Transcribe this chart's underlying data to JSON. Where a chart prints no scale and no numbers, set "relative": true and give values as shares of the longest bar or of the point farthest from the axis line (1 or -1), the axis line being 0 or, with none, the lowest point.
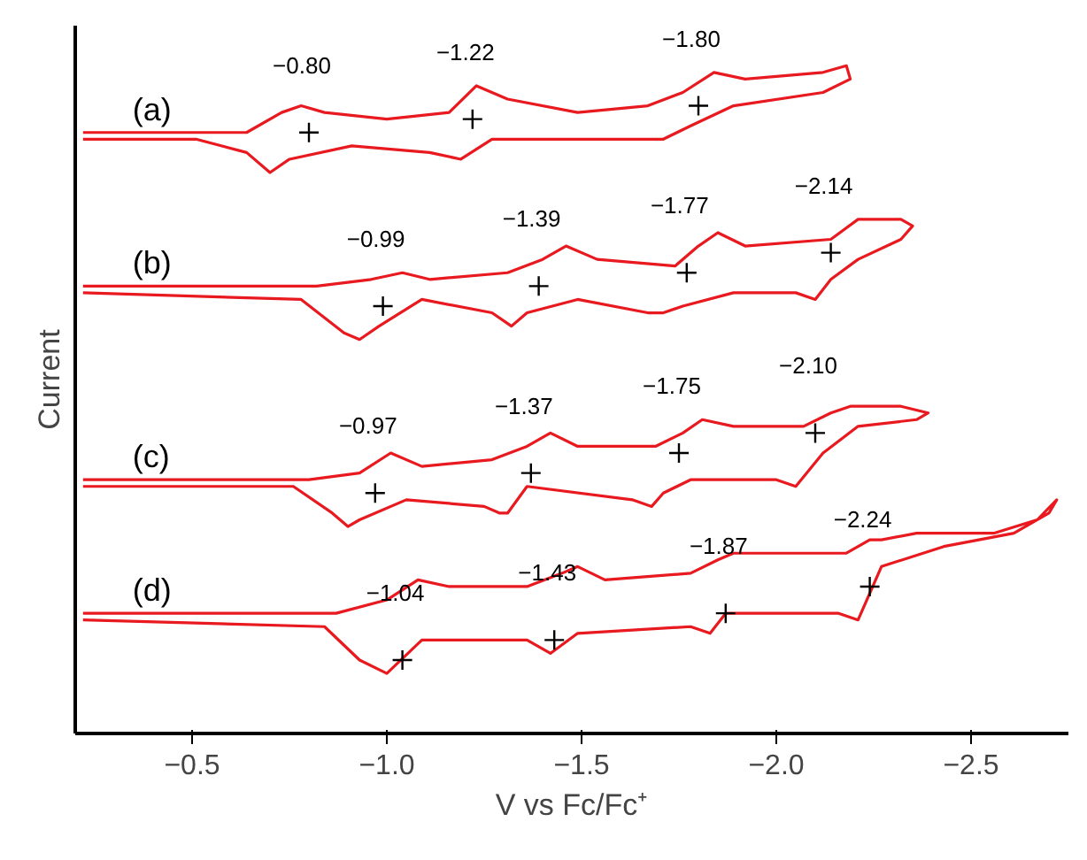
{
  "chart_data": {
    "type": "line",
    "relative": true,
    "xlabel": "V vs Fc/Fc⁺",
    "ylabel": "Current",
    "xlim": [
      -0.2,
      -2.75
    ],
    "xticks": [
      {
        "value": -0.5,
        "label": "−0.5"
      },
      {
        "value": -1.0,
        "label": "−1.0"
      },
      {
        "value": -1.5,
        "label": "−1.5"
      },
      {
        "value": -2.0,
        "label": "−2.0"
      },
      {
        "value": -2.5,
        "label": "−2.5"
      }
    ],
    "grid": false,
    "line_style": "solid",
    "series": [
      {
        "name": "(a)",
        "color": "#e8191f",
        "x": [
          -0.22,
          -0.64,
          -0.73,
          -0.78,
          -0.84,
          -1.0,
          -1.16,
          -1.23,
          -1.31,
          -1.49,
          -1.67,
          -1.76,
          -1.84,
          -1.92,
          -2.12,
          -2.18,
          -2.19,
          -2.12,
          -1.89,
          -1.78,
          -1.71,
          -1.6,
          -1.27,
          -1.19,
          -1.11,
          -0.91,
          -0.75,
          -0.7,
          -0.64,
          -0.51,
          -0.22
        ],
        "values": [
          0.9,
          0.9,
          0.93,
          0.94,
          0.93,
          0.92,
          0.93,
          0.97,
          0.95,
          0.93,
          0.94,
          0.96,
          0.99,
          0.98,
          0.99,
          1.0,
          0.98,
          0.96,
          0.94,
          0.91,
          0.89,
          0.89,
          0.89,
          0.86,
          0.87,
          0.88,
          0.86,
          0.84,
          0.87,
          0.89,
          0.89
        ]
      },
      {
        "name": "(b)",
        "color": "#e8191f",
        "x": [
          -0.22,
          -0.82,
          -0.96,
          -1.04,
          -1.11,
          -1.31,
          -1.4,
          -1.46,
          -1.54,
          -1.74,
          -1.8,
          -1.85,
          -1.92,
          -2.14,
          -2.21,
          -2.25,
          -2.32,
          -2.35,
          -2.32,
          -2.21,
          -2.14,
          -2.1,
          -2.05,
          -1.89,
          -1.76,
          -1.71,
          -1.67,
          -1.49,
          -1.36,
          -1.32,
          -1.27,
          -1.09,
          -0.98,
          -0.93,
          -0.89,
          -0.78,
          -0.22
        ],
        "values": [
          0.67,
          0.67,
          0.68,
          0.69,
          0.68,
          0.69,
          0.71,
          0.73,
          0.71,
          0.7,
          0.73,
          0.75,
          0.73,
          0.74,
          0.77,
          0.77,
          0.77,
          0.76,
          0.74,
          0.71,
          0.68,
          0.65,
          0.66,
          0.66,
          0.64,
          0.63,
          0.63,
          0.65,
          0.63,
          0.61,
          0.63,
          0.65,
          0.61,
          0.59,
          0.6,
          0.65,
          0.66
        ]
      },
      {
        "name": "(c)",
        "color": "#e8191f",
        "x": [
          -0.22,
          -0.8,
          -0.93,
          -1.01,
          -1.09,
          -1.27,
          -1.36,
          -1.42,
          -1.49,
          -1.69,
          -1.76,
          -1.81,
          -1.89,
          -2.07,
          -2.14,
          -2.19,
          -2.32,
          -2.39,
          -2.36,
          -2.21,
          -2.12,
          -2.05,
          -2.0,
          -1.78,
          -1.71,
          -1.68,
          -1.63,
          -1.36,
          -1.31,
          -1.29,
          -1.25,
          -1.05,
          -0.93,
          -0.9,
          -0.86,
          -0.76,
          -0.22
        ],
        "values": [
          0.38,
          0.38,
          0.39,
          0.42,
          0.4,
          0.41,
          0.43,
          0.45,
          0.43,
          0.43,
          0.45,
          0.47,
          0.46,
          0.46,
          0.48,
          0.49,
          0.49,
          0.48,
          0.47,
          0.46,
          0.42,
          0.37,
          0.38,
          0.38,
          0.36,
          0.34,
          0.35,
          0.37,
          0.33,
          0.33,
          0.34,
          0.35,
          0.32,
          0.31,
          0.33,
          0.37,
          0.37
        ]
      },
      {
        "name": "(d)",
        "color": "#e8191f",
        "x": [
          -0.22,
          -0.87,
          -1.0,
          -1.08,
          -1.16,
          -1.36,
          -1.45,
          -1.49,
          -1.56,
          -1.78,
          -1.85,
          -1.89,
          -1.98,
          -2.18,
          -2.24,
          -2.27,
          -2.36,
          -2.56,
          -2.67,
          -2.72,
          -2.7,
          -2.61,
          -2.43,
          -2.27,
          -2.21,
          -2.16,
          -1.87,
          -1.83,
          -1.78,
          -1.49,
          -1.42,
          -1.36,
          -1.09,
          -1.0,
          -0.93,
          -0.84,
          -0.22
        ],
        "values": [
          0.18,
          0.18,
          0.2,
          0.23,
          0.22,
          0.22,
          0.24,
          0.25,
          0.23,
          0.24,
          0.26,
          0.27,
          0.27,
          0.27,
          0.29,
          0.29,
          0.3,
          0.3,
          0.32,
          0.35,
          0.33,
          0.3,
          0.28,
          0.25,
          0.17,
          0.18,
          0.18,
          0.15,
          0.16,
          0.15,
          0.12,
          0.14,
          0.14,
          0.09,
          0.11,
          0.16,
          0.17
        ]
      },
      {
        "type": "scatter",
        "marker": "cross",
        "color": "#000000",
        "x": [
          -0.8,
          -1.22,
          -1.8,
          -0.99,
          -1.39,
          -1.77,
          -2.14,
          -0.97,
          -1.37,
          -1.75,
          -2.1,
          -1.04,
          -1.43,
          -1.87,
          -2.24
        ],
        "values": [
          0.9,
          0.92,
          0.94,
          0.64,
          0.67,
          0.69,
          0.72,
          0.36,
          0.39,
          0.42,
          0.45,
          0.11,
          0.14,
          0.18,
          0.22
        ]
      }
    ],
    "annotations": [
      {
        "text": "−0.80",
        "x": -0.8,
        "y": 0.9
      },
      {
        "text": "−1.22",
        "x": -1.22,
        "y": 0.92
      },
      {
        "text": "−1.80",
        "x": -1.8,
        "y": 0.94
      },
      {
        "text": "−0.99",
        "x": -0.99,
        "y": 0.64
      },
      {
        "text": "−1.39",
        "x": -1.39,
        "y": 0.67
      },
      {
        "text": "−1.77",
        "x": -1.77,
        "y": 0.69
      },
      {
        "text": "−2.14",
        "x": -2.14,
        "y": 0.72
      },
      {
        "text": "−0.97",
        "x": -0.97,
        "y": 0.36
      },
      {
        "text": "−1.37",
        "x": -1.37,
        "y": 0.39
      },
      {
        "text": "−1.75",
        "x": -1.75,
        "y": 0.42
      },
      {
        "text": "−2.10",
        "x": -2.1,
        "y": 0.45
      },
      {
        "text": "−1.04",
        "x": -1.04,
        "y": 0.11
      },
      {
        "text": "−1.43",
        "x": -1.43,
        "y": 0.14
      },
      {
        "text": "−1.87",
        "x": -1.87,
        "y": 0.18
      },
      {
        "text": "−2.24",
        "x": -2.24,
        "y": 0.22
      }
    ]
  }
}
